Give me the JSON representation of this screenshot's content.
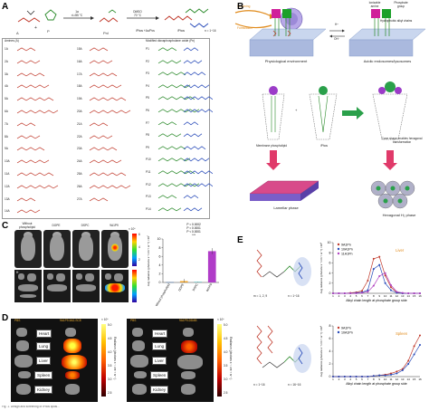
{
  "panels": {
    "A": {
      "label": "A",
      "reagents": [
        "1a",
        "r.t./85 °C"
      ],
      "second_step": [
        "DMSO",
        "70 °C"
      ],
      "product_label": "iPhos",
      "product_sub": "n = 1~16",
      "loop_formula": "iPhos +Ac/Pos",
      "arrows": [
        "Screening",
        "Formulation"
      ],
      "col1_title": "Amines (A)",
      "col1_items": [
        "1A",
        "2A",
        "3A",
        "4A",
        "5A",
        "6A",
        "7A",
        "8A",
        "9A",
        "10A",
        "11A",
        "12A",
        "13A",
        "14A"
      ],
      "col2_items": [
        "15A",
        "16A",
        "17A",
        "18A",
        "19A",
        "20A",
        "21A",
        "22A",
        "23A",
        "24A",
        "25A",
        "26A",
        "27A"
      ],
      "col3_title": "Modified dioxaphospholane oxide (Pn)",
      "col3_items": [
        "P1",
        "P2",
        "P3",
        "P4",
        "P5",
        "P6",
        "P7",
        "P8",
        "P9",
        "P10",
        "P11",
        "P12",
        "P13",
        "P14"
      ]
    },
    "B": {
      "label": "B",
      "top_labels": [
        "Ionizable amine",
        "Phosphate group",
        "Hydrophobic alkyl chains"
      ],
      "arrow_pair": [
        "H⁺",
        "OH⁻"
      ],
      "left_caption": "Physiological environment",
      "right_caption": "Acidic endosomes/lysosomes",
      "mid_labels": [
        "Membrane phospholipid",
        "iPhos",
        "Cone shape enables hexagonal transformation"
      ],
      "plus": "+",
      "bottom_left": "Lamellar phase",
      "bottom_right": "Hexagonal H₂ phase"
    },
    "C": {
      "label": "C",
      "col_heads": [
        "Without phospholipid",
        "DOPE",
        "DSPC",
        "9A1P9"
      ],
      "scale_top": "× 10⁶",
      "scale_ticks": [
        "6",
        "4",
        "2"
      ],
      "legend_labels": [
        "H",
        "Lu",
        "Li",
        "S",
        "K"
      ],
      "chart_data": {
        "type": "bar",
        "categories": [
          "Without phospholipid",
          "DOPE",
          "DSPC",
          "9A1P9"
        ],
        "values": [
          0.05,
          0.3,
          0.1,
          7.2
        ],
        "errors": [
          0.02,
          0.5,
          0.05,
          0.7
        ],
        "colors": [
          "#1e5aa8",
          "#f0a020",
          "#18a0a0",
          "#b03cc8"
        ],
        "ylabel": "Avg radiance (photons s⁻¹ cm⁻² sr⁻¹) ×10⁷",
        "ylim": [
          0,
          10
        ],
        "yticks": [
          "0",
          "2",
          "4",
          "6",
          "8",
          "10"
        ],
        "annotations": [
          "P = 0.0002",
          "P = 0.0001",
          "P < 0.0001",
          "***"
        ]
      }
    },
    "D": {
      "label": "D",
      "left_titles": [
        "PBS",
        "9A1P9-5A2-SC8"
      ],
      "right_titles": [
        "PBS",
        "9A1P9-DDAB"
      ],
      "organs": [
        "Heart",
        "Lung",
        "Liver",
        "Spleen",
        "Kidney"
      ],
      "left_scale": {
        "top": "× 10⁶",
        "ticks": [
          "5.0",
          "4.5",
          "4.0",
          "3.5",
          "3.0",
          "2.5"
        ],
        "label": "Radiance (photons s⁻¹ cm⁻² sr⁻¹)"
      },
      "right_scale": {
        "top": "× 10⁶",
        "ticks": [
          "5.0",
          "4.5",
          "4.0",
          "3.5",
          "3.0",
          "2.5"
        ],
        "label": "Radiance (photons s⁻¹ cm⁻² sr⁻¹)"
      }
    },
    "E": {
      "label": "E",
      "struct1_label": "n = 1~16",
      "struct1_tag": "m = 1, 2, 9",
      "struct2_label": "n = 16~16",
      "struct2_tag": "n = 1~16",
      "charts": [
        {
          "chart_data": {
            "type": "line",
            "title": "Liver",
            "x": [
              1,
              2,
              3,
              4,
              5,
              6,
              7,
              8,
              9,
              10,
              11,
              12,
              13,
              14,
              15,
              16
            ],
            "xticks": [
              "1",
              "2",
              "3",
              "4",
              "5",
              "6",
              "7",
              "8",
              "9",
              "10",
              "11",
              "12",
              "13",
              "14",
              "15",
              "16"
            ],
            "ylim": [
              0,
              10
            ],
            "yticks": [
              "0",
              "2",
              "4",
              "6",
              "8",
              "10"
            ],
            "ylabel": "Avg radiance (photons s⁻¹ cm⁻² sr⁻¹) ×10⁶",
            "xlabel": "Alkyl chain length at phosphate group side",
            "series": [
              {
                "name": "9A1Pn",
                "color": "#c0392b",
                "values": [
                  0,
                  0,
                  0,
                  0.1,
                  0.2,
                  0.5,
                  2.5,
                  6.8,
                  7.2,
                  3.5,
                  1.2,
                  0.2,
                  0,
                  0,
                  0,
                  0
                ]
              },
              {
                "name": "10A1Pn",
                "color": "#2548b8",
                "values": [
                  0,
                  0,
                  0,
                  0,
                  0.1,
                  0.2,
                  0.6,
                  4.8,
                  5.6,
                  2.0,
                  0.6,
                  0.1,
                  0,
                  0,
                  0,
                  0
                ]
              },
              {
                "name": "11A1Pn",
                "color": "#b040c0",
                "values": [
                  0,
                  0,
                  0,
                  0,
                  0,
                  0.1,
                  0.3,
                  1.5,
                  3.4,
                  4.0,
                  1.6,
                  0.3,
                  0.1,
                  0,
                  0,
                  0
                ]
              }
            ]
          }
        },
        {
          "chart_data": {
            "type": "line",
            "title": "Spleen",
            "x": [
              1,
              2,
              3,
              4,
              5,
              6,
              7,
              8,
              9,
              10,
              11,
              12,
              13,
              14,
              15,
              16
            ],
            "xticks": [
              "1",
              "2",
              "3",
              "4",
              "5",
              "6",
              "7",
              "8",
              "9",
              "10",
              "11",
              "12",
              "13",
              "14",
              "15",
              "16"
            ],
            "ylim": [
              0,
              8
            ],
            "yticks": [
              "0",
              "2",
              "4",
              "6",
              "8"
            ],
            "ylabel": "Avg radiance (photons s⁻¹ cm⁻² sr⁻¹) ×10⁶",
            "xlabel": "Alkyl chain length at phosphate group side",
            "series": [
              {
                "name": "9A1Pn",
                "color": "#c0392b",
                "values": [
                  0,
                  0,
                  0,
                  0,
                  0,
                  0,
                  0,
                  0.1,
                  0.2,
                  0.3,
                  0.5,
                  0.8,
                  1.2,
                  2.5,
                  4.8,
                  6.5
                ]
              },
              {
                "name": "10A1Pn",
                "color": "#2548b8",
                "values": [
                  0,
                  0,
                  0,
                  0,
                  0,
                  0,
                  0,
                  0.1,
                  0.2,
                  0.2,
                  0.3,
                  0.5,
                  1.0,
                  2.0,
                  3.5,
                  5.0
                ]
              }
            ]
          }
        }
      ]
    }
  },
  "caption": "Fig. 1. Design and screening of iPhos lipids..."
}
